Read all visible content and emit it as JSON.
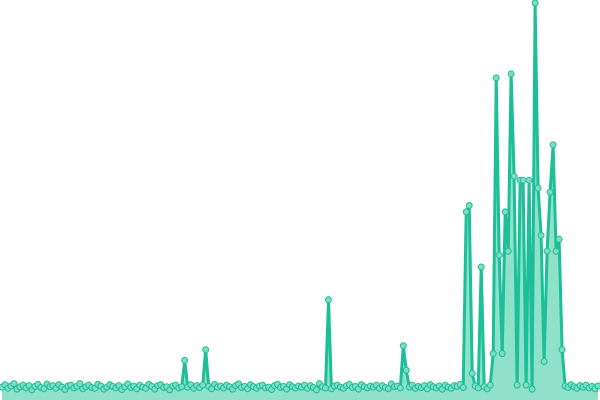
{
  "chart_data": {
    "type": "area",
    "title": "",
    "xlabel": "",
    "ylabel": "",
    "grid": false,
    "legend": "none",
    "ylim": [
      0,
      100
    ],
    "colors": {
      "line": "#1dbf98",
      "area": "#8fe1ca",
      "marker_fill": "#7edcc1"
    },
    "series": [
      {
        "values": [
          2.5,
          3.1,
          2.2,
          2.8,
          3.4,
          2.0,
          2.6,
          3.0,
          2.3,
          2.9,
          1.8,
          2.7,
          3.2,
          2.4,
          2.1,
          3.3,
          2.6,
          2.9,
          2.2,
          3.1,
          2.5,
          1.9,
          2.8,
          3.0,
          2.3,
          2.7,
          3.4,
          2.1,
          2.6,
          3.0,
          2.4,
          2.2,
          3.2,
          2.8,
          2.0,
          2.5,
          3.1,
          2.7,
          2.3,
          2.9,
          1.9,
          2.6,
          3.3,
          2.4,
          2.8,
          2.1,
          3.0,
          2.5,
          2.2,
          3.2,
          2.7,
          2.0,
          2.9,
          3.1,
          2.4,
          2.6,
          1.8,
          2.8,
          3.0,
          2.3,
          2.6,
          9.3,
          2.5,
          3.1,
          2.2,
          2.9,
          2.4,
          3.0,
          12.0,
          2.7,
          2.1,
          3.2,
          2.5,
          2.8,
          2.3,
          3.0,
          2.6,
          2.0,
          2.9,
          3.3,
          2.4,
          2.7,
          2.1,
          3.1,
          2.6,
          2.2,
          2.8,
          3.0,
          2.3,
          2.5,
          1.9,
          2.9,
          3.2,
          2.4,
          2.7,
          2.0,
          3.1,
          2.6,
          2.3,
          2.8,
          2.5,
          3.0,
          2.2,
          2.9,
          2.4,
          1.8,
          3.4,
          2.6,
          2.3,
          24.7,
          2.1,
          2.8,
          3.0,
          2.5,
          2.2,
          2.9,
          3.2,
          2.4,
          2.7,
          2.0,
          3.1,
          2.6,
          2.3,
          2.8,
          2.5,
          3.0,
          2.2,
          2.9,
          2.4,
          2.1,
          3.3,
          2.6,
          2.8,
          2.3,
          13.0,
          6.8,
          2.5,
          3.0,
          2.2,
          2.7,
          2.4,
          2.9,
          2.1,
          3.1,
          2.6,
          2.3,
          2.8,
          2.0,
          3.0,
          2.5,
          2.2,
          2.9,
          2.7,
          3.2,
          2.4,
          47.0,
          48.6,
          6.0,
          2.8,
          2.3,
          33.0,
          2.6,
          2.1,
          3.0,
          11.0,
          81.0,
          36.0,
          11.0,
          47.0,
          37.0,
          82.0,
          56.0,
          3.0,
          55.0,
          55.0,
          3.0,
          55.0,
          2.0,
          100.0,
          53.0,
          41.0,
          9.0,
          37.0,
          52.0,
          64.0,
          37.0,
          40.0,
          12.0,
          2.8,
          2.4,
          3.1,
          2.6,
          2.2,
          2.9,
          2.5,
          3.0,
          2.3,
          2.7,
          2.1,
          2.8
        ]
      }
    ]
  }
}
